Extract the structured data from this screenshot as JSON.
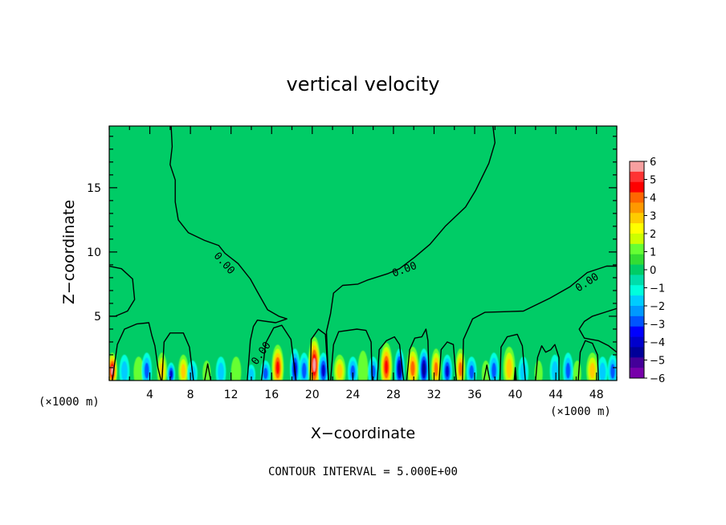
{
  "chart_data": {
    "type": "heatmap",
    "title": "vertical velocity",
    "xlabel": "X−coordinate",
    "ylabel": "Z−coordinate",
    "x_unit_left": "(×1000 m)",
    "x_unit_right": "(×1000 m)",
    "xlim": [
      0,
      50
    ],
    "ylim": [
      0,
      19.8
    ],
    "x_ticks": [
      4,
      8,
      12,
      16,
      20,
      24,
      28,
      32,
      36,
      40,
      44,
      48
    ],
    "x_tick_labels": [
      "4",
      "8",
      "12",
      "16",
      "20",
      "24",
      "28",
      "32",
      "36",
      "40",
      "44",
      "48"
    ],
    "y_ticks": [
      5,
      10,
      15
    ],
    "y_tick_labels": [
      "5",
      "10",
      "15"
    ],
    "footer": "CONTOUR INTERVAL = 5.000E+00",
    "contour_labels": [
      "0.00",
      "0.00",
      "0.00",
      "0.00"
    ],
    "colorbar": {
      "labels": [
        "6",
        "5",
        "4",
        "3",
        "2",
        "1",
        "0",
        "−1",
        "−2",
        "−3",
        "−4",
        "−5",
        "−6"
      ],
      "range": [
        -6,
        6
      ],
      "colors": [
        "#f7a0a0",
        "#ff3333",
        "#ff0000",
        "#ff6600",
        "#ff9900",
        "#ffcc00",
        "#ffff00",
        "#ccff00",
        "#66ff33",
        "#33dd33",
        "#00cc66",
        "#00ddaa",
        "#00ffdd",
        "#00ccff",
        "#0099ff",
        "#0055ff",
        "#0000ff",
        "#0000cc",
        "#000099",
        "#440099",
        "#7700aa"
      ]
    },
    "background_value": 0,
    "cells": [
      {
        "x": 0.3,
        "z": 1.4,
        "w": 0.5,
        "v": 6
      },
      {
        "x": 1.5,
        "z": 1.3,
        "w": 0.5,
        "v": -2
      },
      {
        "x": 2.9,
        "z": 1.2,
        "w": 0.5,
        "v": 1
      },
      {
        "x": 3.7,
        "z": 1.4,
        "w": 0.5,
        "v": -3
      },
      {
        "x": 5.2,
        "z": 1.4,
        "w": 0.5,
        "v": 3
      },
      {
        "x": 6.1,
        "z": 0.9,
        "w": 0.4,
        "v": -4
      },
      {
        "x": 7.3,
        "z": 1.3,
        "w": 0.5,
        "v": 3
      },
      {
        "x": 8.2,
        "z": 1.0,
        "w": 0.5,
        "v": -2
      },
      {
        "x": 9.6,
        "z": 1.0,
        "w": 0.4,
        "v": 1
      },
      {
        "x": 11.0,
        "z": 1.2,
        "w": 0.5,
        "v": -2
      },
      {
        "x": 12.5,
        "z": 1.2,
        "w": 0.5,
        "v": 1
      },
      {
        "x": 14.0,
        "z": 0.8,
        "w": 0.4,
        "v": -2
      },
      {
        "x": 15.4,
        "z": 1.0,
        "w": 0.5,
        "v": -3
      },
      {
        "x": 16.6,
        "z": 1.8,
        "w": 0.6,
        "v": 5
      },
      {
        "x": 18.3,
        "z": 1.6,
        "w": 0.5,
        "v": -4
      },
      {
        "x": 19.2,
        "z": 1.4,
        "w": 0.5,
        "v": -3
      },
      {
        "x": 20.2,
        "z": 2.2,
        "w": 0.6,
        "v": 6
      },
      {
        "x": 21.1,
        "z": 1.4,
        "w": 0.5,
        "v": -4
      },
      {
        "x": 22.7,
        "z": 1.3,
        "w": 0.6,
        "v": 3
      },
      {
        "x": 24.0,
        "z": 1.2,
        "w": 0.5,
        "v": -3
      },
      {
        "x": 25.0,
        "z": 1.5,
        "w": 0.5,
        "v": 1
      },
      {
        "x": 26.0,
        "z": 1.2,
        "w": 0.5,
        "v": -3
      },
      {
        "x": 27.3,
        "z": 1.9,
        "w": 0.6,
        "v": 5
      },
      {
        "x": 28.6,
        "z": 1.6,
        "w": 0.5,
        "v": -5
      },
      {
        "x": 29.9,
        "z": 1.7,
        "w": 0.6,
        "v": 4
      },
      {
        "x": 31.0,
        "z": 1.6,
        "w": 0.5,
        "v": -5
      },
      {
        "x": 32.2,
        "z": 1.6,
        "w": 0.5,
        "v": 4
      },
      {
        "x": 33.3,
        "z": 1.3,
        "w": 0.5,
        "v": -4
      },
      {
        "x": 34.6,
        "z": 1.6,
        "w": 0.5,
        "v": 4
      },
      {
        "x": 35.7,
        "z": 1.2,
        "w": 0.5,
        "v": -3
      },
      {
        "x": 37.1,
        "z": 1.0,
        "w": 0.4,
        "v": 1
      },
      {
        "x": 37.9,
        "z": 1.4,
        "w": 0.5,
        "v": -3
      },
      {
        "x": 39.4,
        "z": 1.7,
        "w": 0.6,
        "v": 3
      },
      {
        "x": 40.8,
        "z": 1.2,
        "w": 0.5,
        "v": -2
      },
      {
        "x": 42.3,
        "z": 1.0,
        "w": 0.4,
        "v": 1
      },
      {
        "x": 43.9,
        "z": 1.3,
        "w": 0.5,
        "v": -2
      },
      {
        "x": 45.2,
        "z": 1.4,
        "w": 0.5,
        "v": -3
      },
      {
        "x": 46.1,
        "z": 1.0,
        "w": 0.4,
        "v": 1
      },
      {
        "x": 47.6,
        "z": 1.4,
        "w": 0.6,
        "v": 3
      },
      {
        "x": 48.6,
        "z": 1.2,
        "w": 0.5,
        "v": -2
      },
      {
        "x": 49.6,
        "z": 1.3,
        "w": 0.5,
        "v": -3
      }
    ],
    "contours": [
      {
        "level": 0,
        "points": [
          [
            0,
            8.9
          ],
          [
            1.2,
            8.7
          ],
          [
            2.3,
            7.9
          ],
          [
            2.5,
            6.3
          ],
          [
            1.8,
            5.4
          ],
          [
            0.6,
            5.0
          ],
          [
            0,
            5.0
          ]
        ]
      },
      {
        "level": 0,
        "points": [
          [
            6.1,
            19.8
          ],
          [
            6.2,
            18.2
          ],
          [
            6.0,
            16.8
          ],
          [
            6.5,
            15.6
          ],
          [
            6.5,
            13.9
          ],
          [
            6.8,
            12.5
          ],
          [
            7.8,
            11.5
          ],
          [
            9.4,
            10.9
          ],
          [
            10.8,
            10.5
          ],
          [
            11.4,
            9.9
          ],
          [
            12.7,
            9.1
          ],
          [
            13.9,
            7.9
          ],
          [
            14.6,
            6.9
          ],
          [
            15.6,
            5.5
          ],
          [
            16.7,
            5.0
          ],
          [
            17.5,
            4.8
          ],
          [
            16.4,
            4.5
          ],
          [
            14.6,
            4.7
          ],
          [
            14.2,
            4.2
          ],
          [
            13.9,
            3.1
          ],
          [
            13.6,
            0
          ]
        ]
      },
      {
        "level": 0,
        "points": [
          [
            21.6,
            0
          ],
          [
            21.4,
            3.8
          ],
          [
            21.8,
            5.2
          ],
          [
            22.1,
            6.8
          ],
          [
            23.0,
            7.4
          ],
          [
            24.5,
            7.5
          ],
          [
            25.4,
            7.8
          ],
          [
            27.4,
            8.3
          ],
          [
            28.6,
            8.7
          ],
          [
            30.1,
            9.6
          ],
          [
            31.6,
            10.6
          ],
          [
            33.1,
            12.0
          ],
          [
            35.1,
            13.5
          ],
          [
            36.1,
            14.8
          ],
          [
            37.4,
            16.9
          ],
          [
            38.0,
            18.5
          ],
          [
            37.8,
            19.8
          ]
        ]
      },
      {
        "level": 0,
        "points": [
          [
            34.8,
            0
          ],
          [
            34.9,
            3.2
          ],
          [
            35.8,
            4.8
          ],
          [
            37.0,
            5.3
          ],
          [
            40.8,
            5.4
          ],
          [
            43.4,
            6.4
          ],
          [
            45.4,
            7.3
          ],
          [
            47.1,
            8.4
          ],
          [
            49.0,
            8.9
          ],
          [
            50,
            8.9
          ]
        ]
      },
      {
        "level": 0,
        "points": [
          [
            50,
            5.6
          ],
          [
            49.2,
            5.4
          ],
          [
            47.6,
            5.0
          ],
          [
            46.8,
            4.6
          ],
          [
            46.3,
            4.0
          ],
          [
            46.8,
            3.3
          ],
          [
            48.2,
            3.1
          ],
          [
            49.2,
            2.7
          ],
          [
            50,
            2.2
          ]
        ]
      },
      {
        "level": 0,
        "points": [
          [
            0.3,
            0
          ],
          [
            0.8,
            2.8
          ],
          [
            1.5,
            4.0
          ],
          [
            2.7,
            4.4
          ],
          [
            3.9,
            4.5
          ],
          [
            4.2,
            3.5
          ],
          [
            4.5,
            2.7
          ],
          [
            4.8,
            1.0
          ],
          [
            5.1,
            0
          ]
        ]
      },
      {
        "level": 0,
        "points": [
          [
            5.2,
            0
          ],
          [
            5.4,
            3.0
          ],
          [
            6.0,
            3.7
          ],
          [
            7.3,
            3.7
          ],
          [
            7.9,
            2.6
          ],
          [
            8.3,
            0
          ]
        ]
      },
      {
        "level": 0,
        "points": [
          [
            15.0,
            0
          ],
          [
            15.4,
            2.9
          ],
          [
            16.2,
            4.1
          ],
          [
            17.0,
            4.3
          ],
          [
            17.9,
            3.2
          ],
          [
            18.4,
            0
          ]
        ]
      },
      {
        "level": 0,
        "points": [
          [
            19.8,
            0
          ],
          [
            19.9,
            3.2
          ],
          [
            20.6,
            4.0
          ],
          [
            21.3,
            3.6
          ],
          [
            21.6,
            0
          ]
        ]
      },
      {
        "level": 0,
        "points": [
          [
            21.8,
            0
          ],
          [
            22.1,
            2.8
          ],
          [
            22.6,
            3.8
          ],
          [
            24.4,
            4.0
          ],
          [
            25.3,
            3.9
          ],
          [
            25.8,
            3.0
          ],
          [
            25.9,
            0
          ]
        ]
      },
      {
        "level": 0,
        "points": [
          [
            26.4,
            0
          ],
          [
            26.6,
            2.4
          ],
          [
            27.3,
            3.1
          ],
          [
            28.1,
            3.4
          ],
          [
            28.6,
            2.8
          ],
          [
            29.0,
            0
          ]
        ]
      },
      {
        "level": 0,
        "points": [
          [
            29.3,
            0
          ],
          [
            29.6,
            2.4
          ],
          [
            30.1,
            3.3
          ],
          [
            30.8,
            3.4
          ],
          [
            31.2,
            4.0
          ],
          [
            31.4,
            3.1
          ],
          [
            31.5,
            0
          ]
        ]
      },
      {
        "level": 0,
        "points": [
          [
            32.5,
            0
          ],
          [
            32.7,
            2.4
          ],
          [
            33.3,
            3.0
          ],
          [
            33.9,
            2.8
          ],
          [
            34.2,
            0
          ]
        ]
      },
      {
        "level": 0,
        "points": [
          [
            38.5,
            0
          ],
          [
            38.6,
            2.6
          ],
          [
            39.2,
            3.4
          ],
          [
            40.2,
            3.6
          ],
          [
            40.7,
            2.7
          ],
          [
            41.0,
            0
          ]
        ]
      },
      {
        "level": 0,
        "points": [
          [
            42.0,
            0
          ],
          [
            42.2,
            1.8
          ],
          [
            42.6,
            2.7
          ],
          [
            43.0,
            2.2
          ],
          [
            43.5,
            2.4
          ],
          [
            43.9,
            2.8
          ],
          [
            44.3,
            1.8
          ],
          [
            44.3,
            0
          ]
        ]
      },
      {
        "level": 0,
        "points": [
          [
            46.2,
            0
          ],
          [
            46.4,
            2.2
          ],
          [
            46.9,
            3.1
          ],
          [
            47.6,
            2.9
          ],
          [
            48.1,
            2.0
          ],
          [
            48.2,
            0
          ]
        ]
      },
      {
        "level": 0,
        "points": [
          [
            9.4,
            0
          ],
          [
            9.7,
            1.3
          ],
          [
            10.0,
            0
          ]
        ]
      },
      {
        "level": 0,
        "points": [
          [
            36.9,
            0
          ],
          [
            37.2,
            1.2
          ],
          [
            37.5,
            0
          ]
        ]
      },
      {
        "level": 0,
        "points": [
          [
            39.9,
            0
          ],
          [
            40.0,
            1.0
          ],
          [
            40.1,
            0
          ]
        ]
      }
    ],
    "contour_label_positions": [
      [
        11.3,
        9.1,
        48
      ],
      [
        15.0,
        2.1,
        -55
      ],
      [
        29.1,
        8.6,
        -20
      ],
      [
        47.1,
        7.6,
        -33
      ]
    ]
  }
}
